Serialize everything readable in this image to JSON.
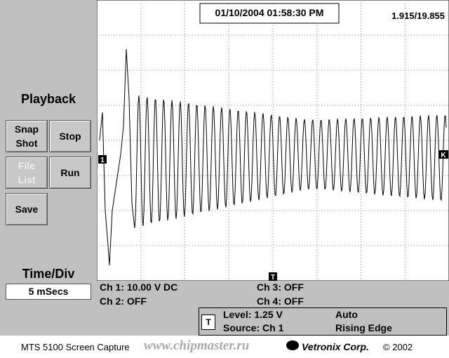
{
  "screen": {
    "timestamp": "01/10/2004 01:58:30 PM",
    "position": "1.915/19.855",
    "ch1_marker": "1",
    "trigger_marker": "T",
    "level_marker": "K"
  },
  "panel": {
    "title": "Playback",
    "buttons": [
      "Snap Shot",
      "Stop",
      "File List",
      "Run",
      "Save"
    ],
    "time_div_label": "Time/Div",
    "time_div_value": "5 mSecs"
  },
  "status": {
    "ch1": "Ch 1: 10.00 V DC",
    "ch2": "Ch 2: OFF",
    "ch3": "Ch 3: OFF",
    "ch4": "Ch 4: OFF",
    "trigger": {
      "icon": "T",
      "level": "Level: 1.25 V",
      "source": "Source: Ch 1",
      "mode": "Auto",
      "edge": "Rising Edge"
    }
  },
  "footer": {
    "product": "MTS 5100 Screen Capture",
    "watermark": "www.chipmaster.ru",
    "company": "Vetronix Corp.",
    "copyright": "© 2002"
  }
}
